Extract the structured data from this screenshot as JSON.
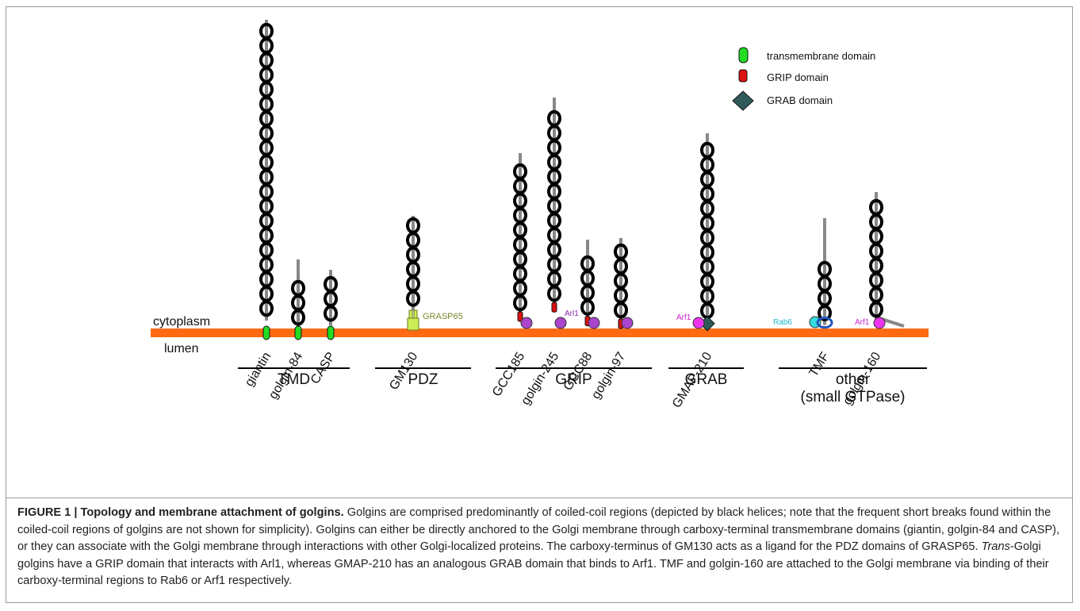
{
  "legend": [
    {
      "label": "transmembrane domain"
    },
    {
      "label": "GRIP domain"
    },
    {
      "label": "GRAB domain"
    }
  ],
  "membrane": {
    "top_label": "cytoplasm",
    "bottom_label": "lumen"
  },
  "proteins": [
    {
      "name": "giantin"
    },
    {
      "name": "golgin-84"
    },
    {
      "name": "CASP"
    },
    {
      "name": "GM130"
    },
    {
      "name": "GCC185"
    },
    {
      "name": "golgin-245"
    },
    {
      "name": "GCC88"
    },
    {
      "name": "golgin-97"
    },
    {
      "name": "GMAP-210"
    },
    {
      "name": "TMF"
    },
    {
      "name": "golgin-160"
    }
  ],
  "binding_labels": [
    "GRASP65",
    "Arl1",
    "Arf1",
    "Rab6",
    "Arf1"
  ],
  "groups": [
    {
      "label": "TMD"
    },
    {
      "label": "PDZ"
    },
    {
      "label": "GRIP"
    },
    {
      "label": "GRAB"
    },
    {
      "label": "other",
      "sublabel": "(small GTPase)"
    }
  ],
  "caption": {
    "figure_label": "FIGURE 1 | Topology and membrane attachment of golgins.",
    "text_1": " Golgins are comprised predominantly of coiled-coil regions (depicted by black helices; note that the frequent short breaks found within the coiled-coil regions of golgins are not shown for simplicity). Golgins can either be directly anchored to the Golgi membrane through carboxy-terminal transmembrane domains (giantin, golgin-84 and CASP), or they can associate with the Golgi membrane through interactions with other Golgi-localized proteins. The carboxy-terminus of GM130 acts as a ligand for the PDZ domains of GRASP65. ",
    "italic": "Trans",
    "text_2": "-Golgi golgins have a GRIP domain that interacts with Arl1, whereas GMAP-210 has an analogous GRAB domain that binds to Arf1. TMF and golgin-160 are attached to the Golgi membrane via binding of their carboxy-terminal regions to Rab6 or Arf1 respectively."
  }
}
